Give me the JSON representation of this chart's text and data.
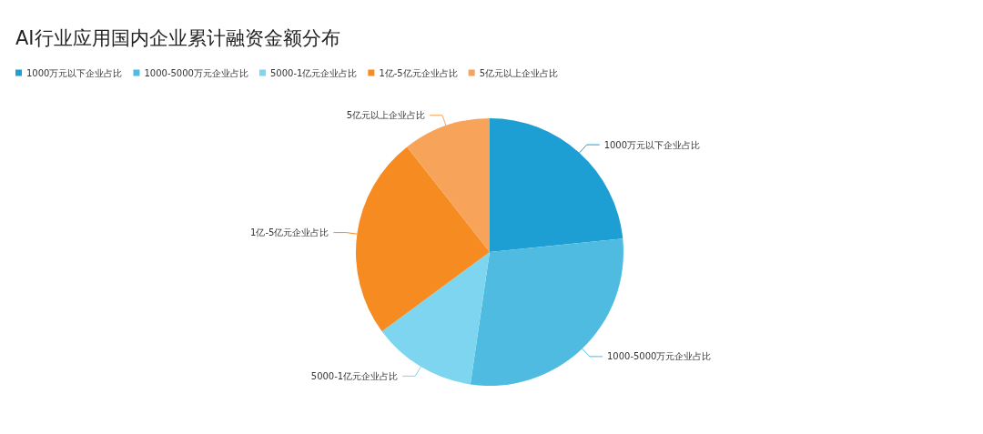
{
  "chart_data": {
    "type": "pie",
    "title": "AI行业应用国内企业累计融资金额分布",
    "categories": [
      "1000万元以下企业占比",
      "1000-5000万元企业占比",
      "5000-1亿元企业占比",
      "1亿-5亿元企业占比",
      "5亿元以上企业占比"
    ],
    "values": [
      23.4,
      28.9,
      12.6,
      24.5,
      10.6
    ],
    "colors": [
      "#1e9fd4",
      "#4fbbe0",
      "#7dd5ef",
      "#f68b22",
      "#f7a35a"
    ],
    "legend": "top left"
  }
}
